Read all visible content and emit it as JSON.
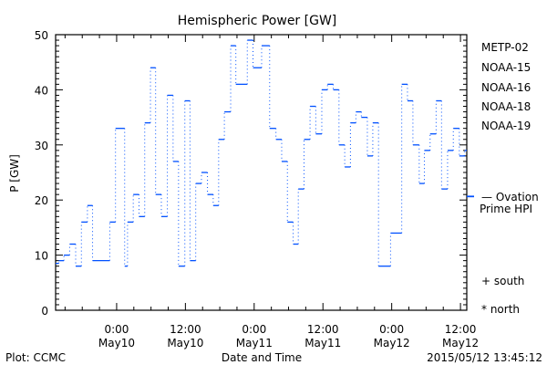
{
  "chart_data": {
    "type": "line",
    "title": "Hemispheric Power [GW]",
    "xlabel": "Date and Time",
    "ylabel": "P [GW]",
    "ylim": [
      0,
      50
    ],
    "yticks": [
      0,
      10,
      20,
      30,
      40,
      50
    ],
    "x_units": "hours since 2015-05-10 00:00 UT",
    "xlim": [
      -10.65,
      61.1
    ],
    "xticks": [
      {
        "x": 0,
        "line1": "0:00",
        "line2": "May10"
      },
      {
        "x": 12,
        "line1": "12:00",
        "line2": "May10"
      },
      {
        "x": 24,
        "line1": "0:00",
        "line2": "May11"
      },
      {
        "x": 36,
        "line1": "12:00",
        "line2": "May11"
      },
      {
        "x": 48,
        "line1": "0:00",
        "line2": "May12"
      },
      {
        "x": 60,
        "line1": "12:00",
        "line2": "May12"
      }
    ],
    "series": [
      {
        "name": "NOAA-15",
        "color": "#0050ff",
        "style": "step",
        "x": [
          -10.65,
          -10.1,
          -9.2,
          -8.2,
          -7.15,
          -6.15,
          -5.1,
          -4.2,
          -1.2,
          -0.2,
          1.4,
          1.9,
          2.9,
          3.9,
          4.9,
          5.9,
          6.8,
          7.8,
          8.85,
          9.85,
          10.8,
          11.9,
          12.8,
          13.8,
          14.8,
          15.85,
          16.85,
          17.8,
          18.8,
          19.9,
          20.8,
          22.8,
          23.8,
          25.3,
          26.7,
          27.8,
          28.8,
          29.8,
          30.8,
          31.7,
          32.7,
          33.75,
          34.75,
          35.8,
          36.8,
          37.8,
          38.8,
          39.8,
          40.8,
          41.75,
          42.7,
          43.75,
          44.7,
          45.7,
          47.8,
          49.75,
          50.75,
          51.7,
          52.8,
          53.7,
          54.7,
          55.75,
          56.7,
          57.75,
          58.75,
          59.8,
          60.75
        ],
        "y": [
          8.5,
          9,
          10,
          12,
          8,
          16,
          19,
          9,
          16,
          33,
          8,
          16,
          21,
          17,
          34,
          44,
          21,
          17,
          39,
          27,
          8,
          38,
          9,
          23,
          25,
          21,
          19,
          31,
          36,
          48,
          41,
          49,
          44,
          48,
          33,
          31,
          27,
          16,
          12,
          22,
          31,
          37,
          32,
          40,
          41,
          40,
          30,
          26,
          34,
          36,
          35,
          28,
          34,
          8,
          14,
          41,
          38,
          30,
          23,
          29,
          32,
          38,
          22,
          29,
          33,
          28,
          29
        ],
        "x_end": 61.1
      }
    ],
    "ovation_prime_hpi": 20.6,
    "legend": {
      "placement": "right",
      "entries": [
        {
          "label": "METP-02",
          "color": "#000000"
        },
        {
          "label": "NOAA-15",
          "color": "#0030e0"
        },
        {
          "label": "NOAA-16",
          "color": "#00b8f0"
        },
        {
          "label": "NOAA-18",
          "color": "#20e060"
        },
        {
          "label": "NOAA-19",
          "color": "#ff8c00"
        }
      ],
      "ovation_label_1": "— Ovation",
      "ovation_label_2": "Prime HPI",
      "ovation_color": "#0050ff",
      "south_label": "+ south",
      "north_label": "* north"
    }
  },
  "footer": {
    "left": "Plot: CCMC",
    "right": "2015/05/12 13:45:12"
  }
}
